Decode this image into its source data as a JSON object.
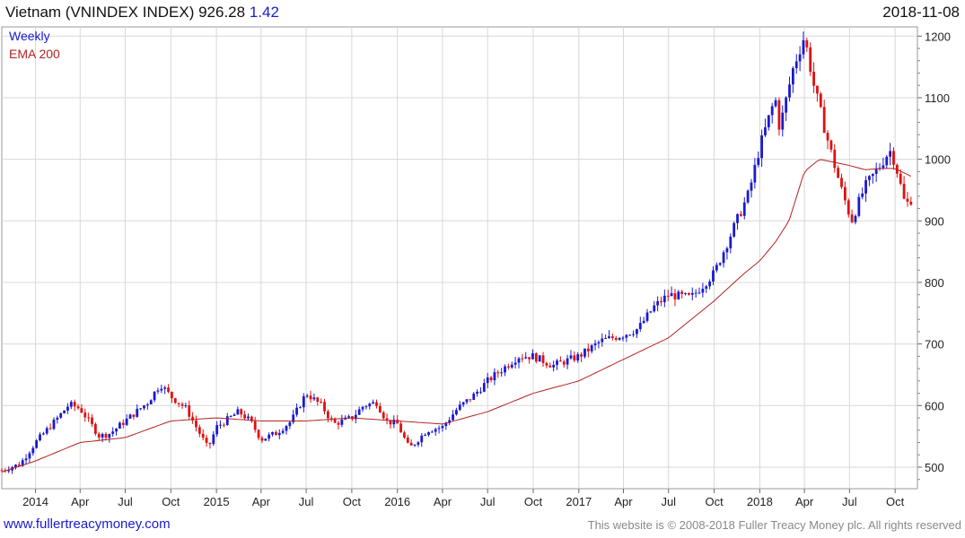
{
  "header": {
    "name": "Vietnam (VNINDEX INDEX)",
    "last": "926.28",
    "change": "1.42",
    "date": "2018-11-08"
  },
  "legend": {
    "weekly": "Weekly",
    "ema": "EMA 200"
  },
  "footer": {
    "site": "www.fullertreacymoney.com",
    "copyright": "This website is © 2008-2018 Fuller Treacy Money plc. All rights reserved"
  },
  "colors": {
    "up": "#1a1ad0",
    "down": "#e01010",
    "ema": "#b22222",
    "grid": "#d8d8d8"
  },
  "chart_data": {
    "type": "candlestick",
    "title": "Vietnam (VNINDEX INDEX)",
    "frequency": "Weekly",
    "ylim": [
      465,
      1215
    ],
    "yticks": [
      500,
      600,
      700,
      800,
      900,
      1000,
      1100,
      1200
    ],
    "xticks": [
      {
        "label": "2014",
        "date": "2014-01-01"
      },
      {
        "label": "Apr",
        "date": "2014-04-01"
      },
      {
        "label": "Jul",
        "date": "2014-07-01"
      },
      {
        "label": "Oct",
        "date": "2014-10-01"
      },
      {
        "label": "2015",
        "date": "2015-01-01"
      },
      {
        "label": "Apr",
        "date": "2015-04-01"
      },
      {
        "label": "Jul",
        "date": "2015-07-01"
      },
      {
        "label": "Oct",
        "date": "2015-10-01"
      },
      {
        "label": "2016",
        "date": "2016-01-01"
      },
      {
        "label": "Apr",
        "date": "2016-04-01"
      },
      {
        "label": "Jul",
        "date": "2016-07-01"
      },
      {
        "label": "Oct",
        "date": "2016-10-01"
      },
      {
        "label": "2017",
        "date": "2017-01-01"
      },
      {
        "label": "Apr",
        "date": "2017-04-01"
      },
      {
        "label": "Jul",
        "date": "2017-07-01"
      },
      {
        "label": "Oct",
        "date": "2017-10-01"
      },
      {
        "label": "2018",
        "date": "2018-01-01"
      },
      {
        "label": "Apr",
        "date": "2018-04-01"
      },
      {
        "label": "Jul",
        "date": "2018-07-01"
      },
      {
        "label": "Oct",
        "date": "2018-10-01"
      }
    ],
    "x_range": [
      "2013-10-25",
      "2018-11-15"
    ],
    "price_anchors": [
      [
        "2013-10-25",
        495
      ],
      [
        "2013-12-01",
        505
      ],
      [
        "2014-01-01",
        540
      ],
      [
        "2014-02-15",
        580
      ],
      [
        "2014-03-10",
        602
      ],
      [
        "2014-04-01",
        595
      ],
      [
        "2014-05-10",
        550
      ],
      [
        "2014-06-01",
        555
      ],
      [
        "2014-07-01",
        575
      ],
      [
        "2014-08-15",
        605
      ],
      [
        "2014-09-10",
        635
      ],
      [
        "2014-10-01",
        615
      ],
      [
        "2014-11-01",
        595
      ],
      [
        "2014-12-15",
        530
      ],
      [
        "2015-01-01",
        565
      ],
      [
        "2015-02-15",
        590
      ],
      [
        "2015-03-10",
        575
      ],
      [
        "2015-04-01",
        545
      ],
      [
        "2015-05-01",
        555
      ],
      [
        "2015-06-01",
        575
      ],
      [
        "2015-07-01",
        620
      ],
      [
        "2015-08-01",
        600
      ],
      [
        "2015-08-25",
        570
      ],
      [
        "2015-10-01",
        580
      ],
      [
        "2015-10-25",
        600
      ],
      [
        "2015-11-20",
        605
      ],
      [
        "2015-12-10",
        575
      ],
      [
        "2016-01-01",
        570
      ],
      [
        "2016-01-25",
        530
      ],
      [
        "2016-03-01",
        560
      ],
      [
        "2016-04-01",
        565
      ],
      [
        "2016-05-01",
        595
      ],
      [
        "2016-06-01",
        615
      ],
      [
        "2016-07-01",
        640
      ],
      [
        "2016-08-01",
        660
      ],
      [
        "2016-09-01",
        680
      ],
      [
        "2016-10-01",
        680
      ],
      [
        "2016-11-10",
        665
      ],
      [
        "2017-01-01",
        680
      ],
      [
        "2017-02-15",
        705
      ],
      [
        "2017-04-01",
        715
      ],
      [
        "2017-05-01",
        725
      ],
      [
        "2017-06-01",
        760
      ],
      [
        "2017-07-01",
        780
      ],
      [
        "2017-08-15",
        775
      ],
      [
        "2017-10-01",
        815
      ],
      [
        "2017-11-10",
        890
      ],
      [
        "2017-12-10",
        945
      ],
      [
        "2018-01-01",
        1020
      ],
      [
        "2018-02-01",
        1100
      ],
      [
        "2018-02-10",
        1050
      ],
      [
        "2018-03-10",
        1150
      ],
      [
        "2018-04-01",
        1200
      ],
      [
        "2018-04-20",
        1120
      ],
      [
        "2018-05-15",
        1040
      ],
      [
        "2018-06-01",
        990
      ],
      [
        "2018-06-15",
        950
      ],
      [
        "2018-07-05",
        900
      ],
      [
        "2018-08-01",
        955
      ],
      [
        "2018-09-01",
        990
      ],
      [
        "2018-09-20",
        1015
      ],
      [
        "2018-10-01",
        995
      ],
      [
        "2018-10-20",
        930
      ],
      [
        "2018-11-08",
        926.28
      ]
    ],
    "ema_anchors": [
      [
        "2013-10-25",
        492
      ],
      [
        "2014-01-01",
        510
      ],
      [
        "2014-04-01",
        540
      ],
      [
        "2014-07-01",
        548
      ],
      [
        "2014-10-01",
        575
      ],
      [
        "2015-01-01",
        580
      ],
      [
        "2015-04-01",
        575
      ],
      [
        "2015-07-01",
        575
      ],
      [
        "2015-10-01",
        580
      ],
      [
        "2016-01-01",
        575
      ],
      [
        "2016-04-01",
        570
      ],
      [
        "2016-07-01",
        590
      ],
      [
        "2016-10-01",
        620
      ],
      [
        "2017-01-01",
        640
      ],
      [
        "2017-04-01",
        675
      ],
      [
        "2017-07-01",
        710
      ],
      [
        "2017-10-01",
        770
      ],
      [
        "2017-12-01",
        815
      ],
      [
        "2018-01-01",
        835
      ],
      [
        "2018-02-01",
        865
      ],
      [
        "2018-03-01",
        900
      ],
      [
        "2018-04-01",
        980
      ],
      [
        "2018-05-01",
        1000
      ],
      [
        "2018-06-01",
        995
      ],
      [
        "2018-07-01",
        990
      ],
      [
        "2018-08-01",
        983
      ],
      [
        "2018-09-01",
        985
      ],
      [
        "2018-10-01",
        985
      ],
      [
        "2018-11-08",
        970
      ]
    ]
  }
}
